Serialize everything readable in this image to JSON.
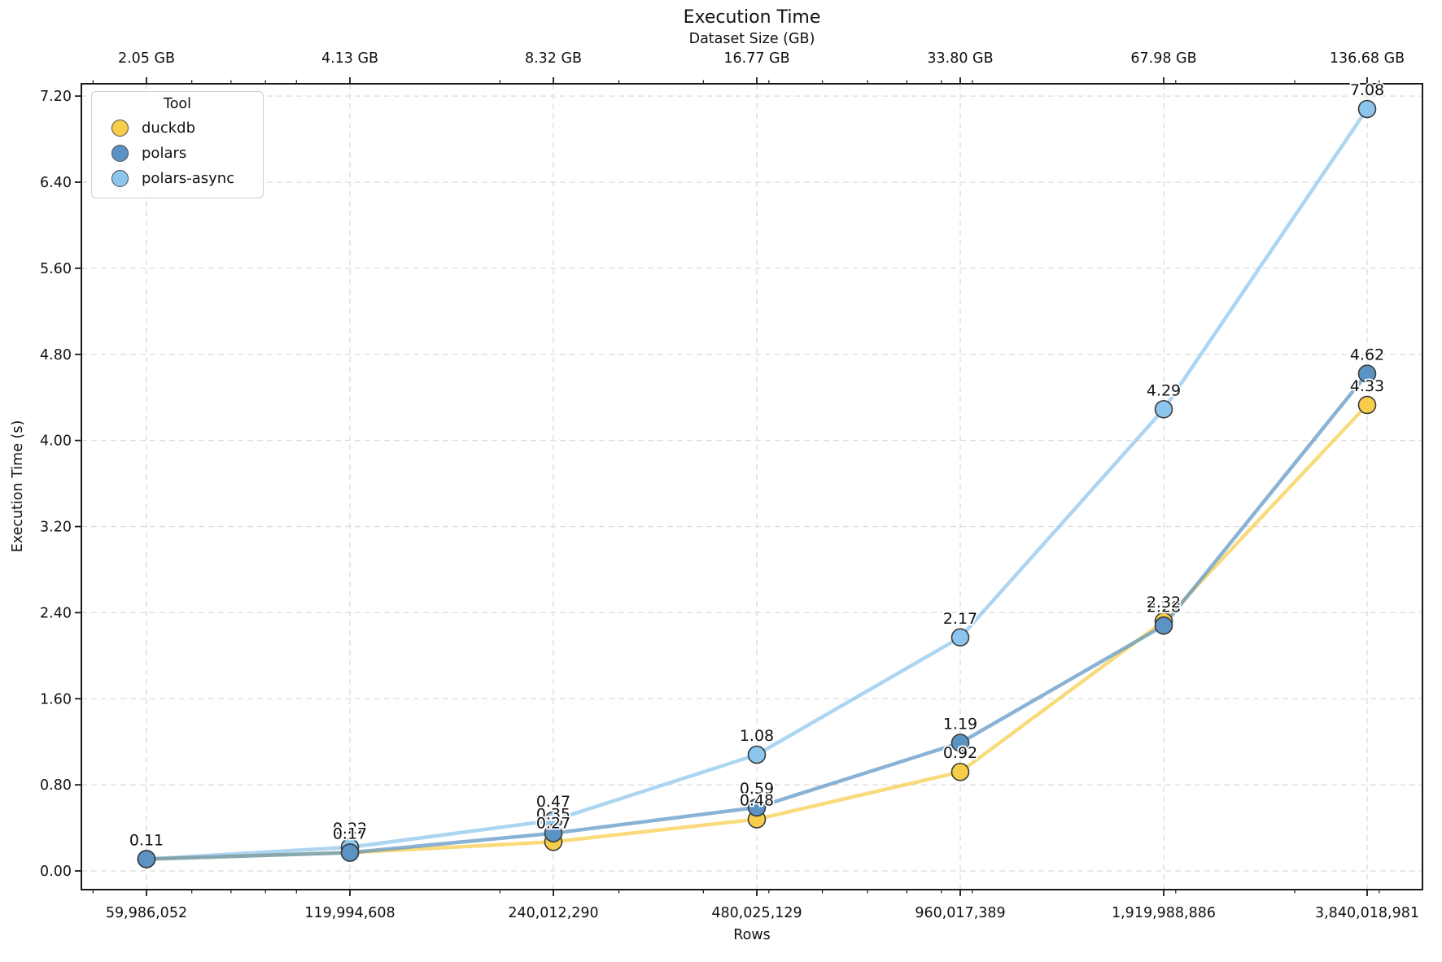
{
  "chart_data": {
    "type": "line",
    "title": "Execution Time",
    "xlabel": "Rows",
    "x2label": "Dataset Size (GB)",
    "ylabel": "Execution Time (s)",
    "x_axis_scale": "log2",
    "grid": true,
    "legend_title": "Tool",
    "legend_position": "upper left",
    "rows": [
      59986052,
      119994608,
      240012290,
      480025129,
      960017389,
      1919988886,
      3840018981
    ],
    "x_tick_labels_bottom": [
      "59,986,052",
      "119,994,608",
      "240,012,290",
      "480,025,129",
      "960,017,389",
      "1,919,988,886",
      "3,840,018,981"
    ],
    "x_tick_labels_top": [
      "2.05 GB",
      "4.13 GB",
      "8.32 GB",
      "16.77 GB",
      "33.80 GB",
      "67.98 GB",
      "136.68 GB"
    ],
    "y_tick_labels": [
      "0.00",
      "0.80",
      "1.60",
      "2.40",
      "3.20",
      "4.00",
      "4.80",
      "5.60",
      "6.40",
      "7.20"
    ],
    "ylim": [
      0,
      7.2
    ],
    "series": [
      {
        "name": "duckdb",
        "color": "#F7CD4A",
        "values": [
          0.11,
          0.17,
          0.27,
          0.48,
          0.92,
          2.32,
          4.33
        ]
      },
      {
        "name": "polars",
        "color": "#5B94C4",
        "values": [
          0.11,
          0.17,
          0.35,
          0.59,
          1.19,
          2.28,
          4.62
        ]
      },
      {
        "name": "polars-async",
        "color": "#8CC5ED",
        "values": [
          0.11,
          0.22,
          0.47,
          1.08,
          2.17,
          4.29,
          7.08
        ]
      }
    ],
    "point_label_color": "#111111",
    "grid_color": "#dcdcdc",
    "spine_color": "#1a1a1a"
  }
}
